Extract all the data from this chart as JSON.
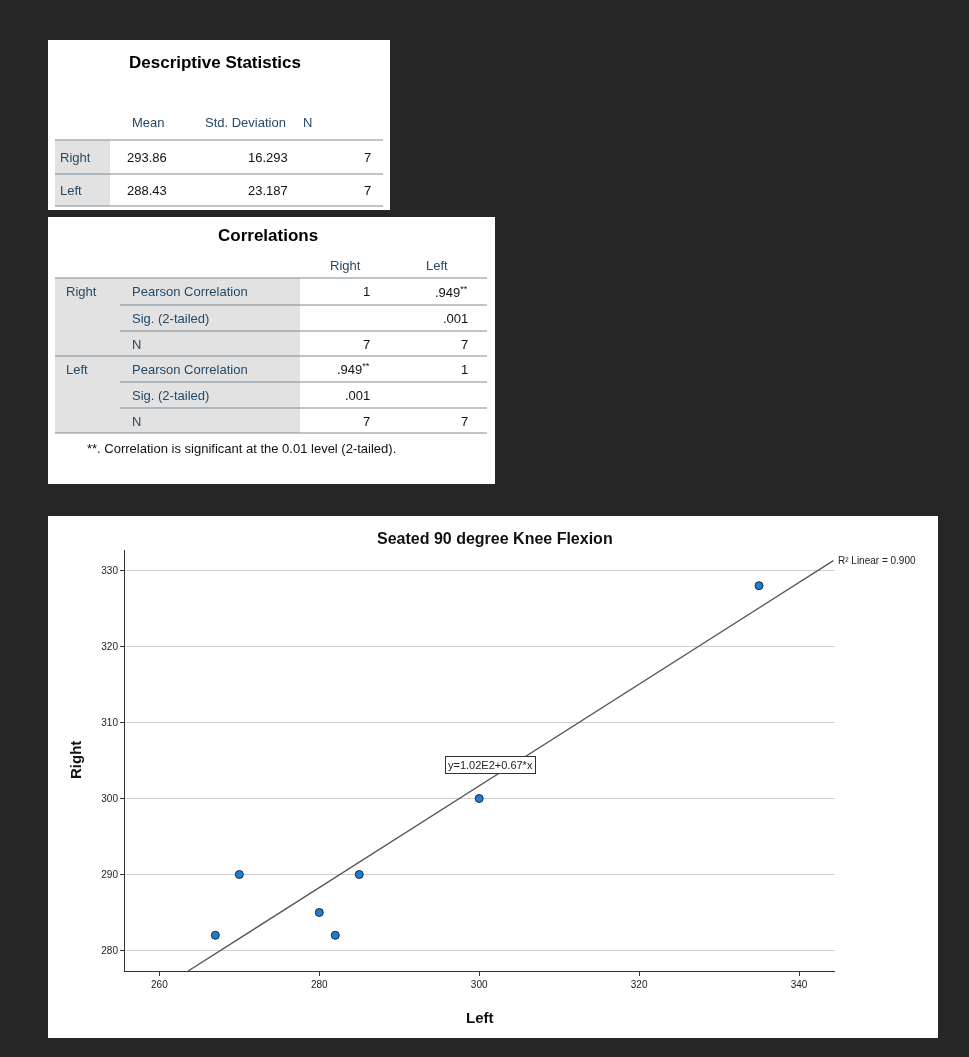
{
  "chart_data": [
    {
      "type": "other",
      "title": "Descriptive Statistics",
      "annotations": [
        "Mean",
        "Std. Deviation",
        "N",
        "Right",
        "293.86",
        "16.293",
        "7",
        "Left",
        "288.43",
        "23.187",
        "7"
      ]
    },
    {
      "type": "other",
      "title": "Correlations",
      "annotations": [
        "Right",
        "Left",
        "Right",
        "Pearson Correlation",
        "1",
        ".949$^{**}$",
        "Sig. (2-tailed)",
        ".001",
        "N",
        "7",
        "7",
        "Left",
        "Pearson Correlation",
        ".949$^{**}$",
        "1",
        "Sig. (2-tailed)",
        ".001",
        "N",
        "7",
        "7",
        "**. Correlation is significant at the 0.01 level (2-tailed)."
      ]
    },
    {
      "type": "scatter",
      "title": "Seated 90 degree Knee Flexion",
      "xlabel": "Left",
      "ylabel": "Right",
      "x": [
        267,
        270,
        280,
        282,
        285,
        300,
        335
      ],
      "xlim": [
        255.7,
        344.5
      ],
      "ylim": [
        277.3,
        332.7
      ],
      "xticks": [
        260,
        280,
        300,
        320,
        340
      ],
      "yticks": [
        280,
        290,
        300,
        310,
        320,
        330
      ],
      "grid": "y",
      "series": [
        {
          "color": "#1a7fd4",
          "marker": "circle",
          "values": [
            282,
            290,
            285,
            282,
            290,
            300,
            328
          ]
        },
        {
          "type": "line",
          "color": "#555555",
          "x": [
            263.6,
            344.3
          ],
          "values": [
            277.3,
            331.3
          ]
        }
      ],
      "annotations": [
        "R² Linear = 0.900",
        "y=1.02E2+0.67*x"
      ]
    }
  ]
}
